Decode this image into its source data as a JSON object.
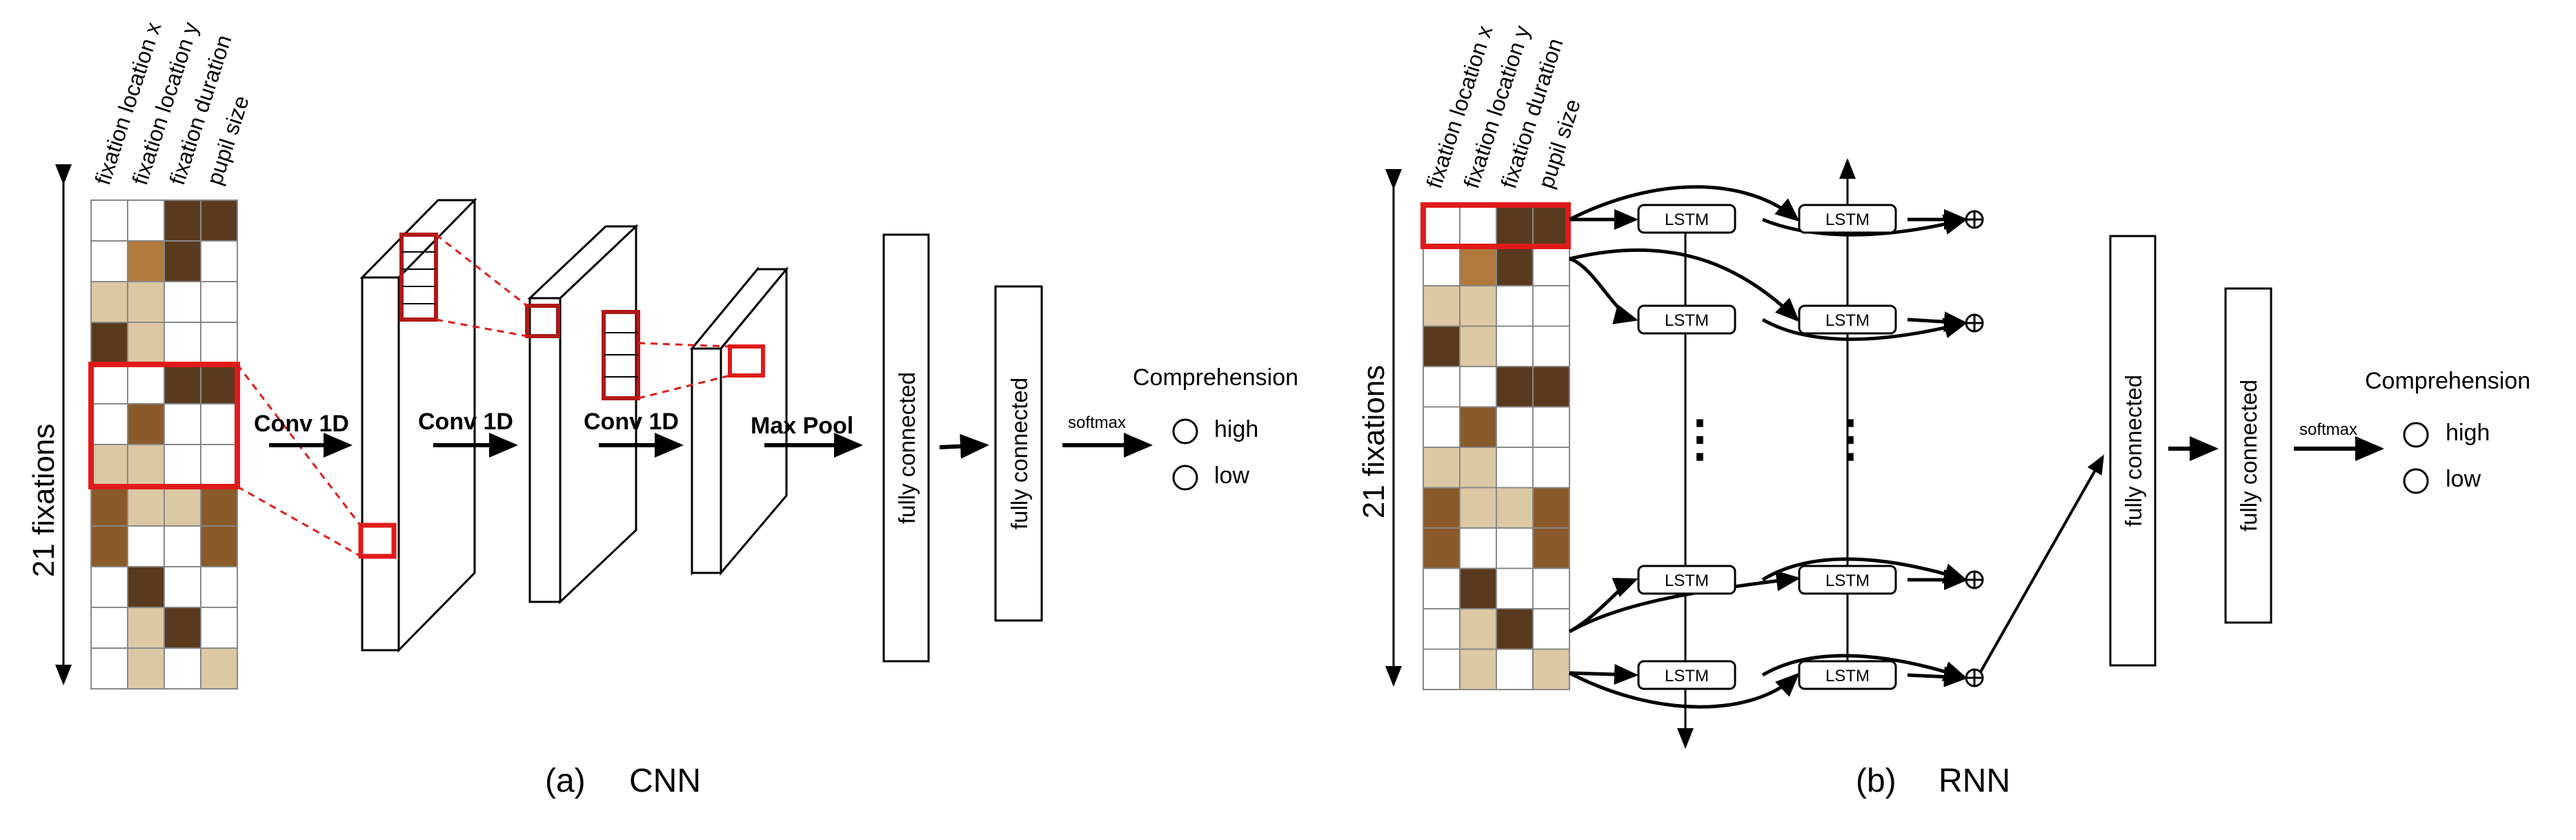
{
  "features": [
    "fixation location x",
    "fixation location y",
    "fixation duration",
    "pupil size"
  ],
  "fixations_label": "21 fixations",
  "colors": {
    "c0": "#ffffff",
    "c1": "#ddc8a4",
    "c2": "#b07a3c",
    "c3": "#8a5a2b",
    "c4": "#5a3a1e",
    "red": "#e01b1b",
    "cell_border": "#888888"
  },
  "cnn": {
    "grid": [
      [
        0,
        0,
        4,
        4
      ],
      [
        0,
        2,
        4,
        0
      ],
      [
        1,
        1,
        0,
        0
      ],
      [
        4,
        1,
        0,
        0
      ],
      [
        0,
        0,
        4,
        4
      ],
      [
        0,
        3,
        0,
        0
      ],
      [
        1,
        1,
        0,
        0
      ],
      [
        3,
        1,
        1,
        3
      ],
      [
        3,
        0,
        0,
        3
      ],
      [
        0,
        4,
        0,
        0
      ],
      [
        0,
        1,
        4,
        0
      ],
      [
        0,
        1,
        0,
        1
      ]
    ],
    "steps": [
      "Conv 1D",
      "Conv 1D",
      "Conv 1D",
      "Max Pool"
    ],
    "fc": [
      "fully connected",
      "fully connected"
    ],
    "softmax": "softmax",
    "output_title": "Comprehension",
    "outputs": [
      "high",
      "low"
    ],
    "caption_letter": "(a)",
    "caption_name": "CNN"
  },
  "rnn": {
    "grid": [
      [
        0,
        0,
        4,
        4
      ],
      [
        0,
        2,
        4,
        0
      ],
      [
        1,
        1,
        0,
        0
      ],
      [
        4,
        1,
        0,
        0
      ],
      [
        0,
        0,
        4,
        4
      ],
      [
        0,
        3,
        0,
        0
      ],
      [
        1,
        1,
        0,
        0
      ],
      [
        3,
        1,
        1,
        3
      ],
      [
        3,
        0,
        0,
        3
      ],
      [
        0,
        4,
        0,
        0
      ],
      [
        0,
        1,
        4,
        0
      ],
      [
        0,
        1,
        0,
        1
      ]
    ],
    "cell_label": "LSTM",
    "dots": "⋮",
    "fc": [
      "fully connected",
      "fully connected"
    ],
    "softmax": "softmax",
    "output_title": "Comprehension",
    "outputs": [
      "high",
      "low"
    ],
    "caption_letter": "(b)",
    "caption_name": "RNN"
  }
}
